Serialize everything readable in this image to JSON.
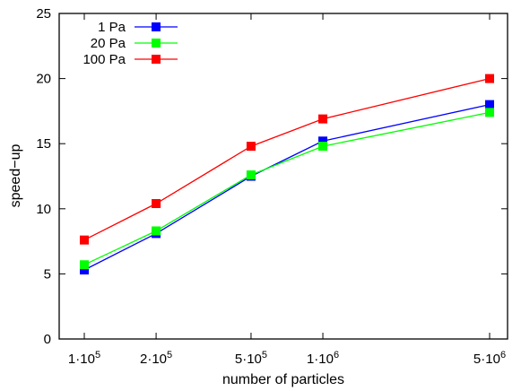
{
  "chart_data": {
    "type": "line",
    "title": "",
    "xlabel": "number of particles",
    "ylabel": "speed−up",
    "categories": [
      {
        "mant": "1·10",
        "exp": "5"
      },
      {
        "mant": "2·10",
        "exp": "5"
      },
      {
        "mant": "5·10",
        "exp": "5"
      },
      {
        "mant": "1·10",
        "exp": "6"
      },
      {
        "mant": "5·10",
        "exp": "6"
      }
    ],
    "x": [
      100000,
      200000,
      500000,
      1000000,
      5000000
    ],
    "xscale": "log",
    "ylim": [
      0,
      25
    ],
    "yticks": [
      "0",
      "5",
      "10",
      "15",
      "20",
      "25"
    ],
    "grid": false,
    "legend_position": "top-left",
    "series": [
      {
        "name": "1 Pa",
        "color": "#0000ff",
        "values": [
          5.3,
          8.1,
          12.5,
          15.2,
          18.0
        ]
      },
      {
        "name": "20 Pa",
        "color": "#00ff00",
        "values": [
          5.7,
          8.3,
          12.6,
          14.8,
          17.4
        ]
      },
      {
        "name": "100 Pa",
        "color": "#ff0000",
        "values": [
          7.6,
          10.4,
          14.8,
          16.9,
          20.0
        ]
      }
    ]
  }
}
